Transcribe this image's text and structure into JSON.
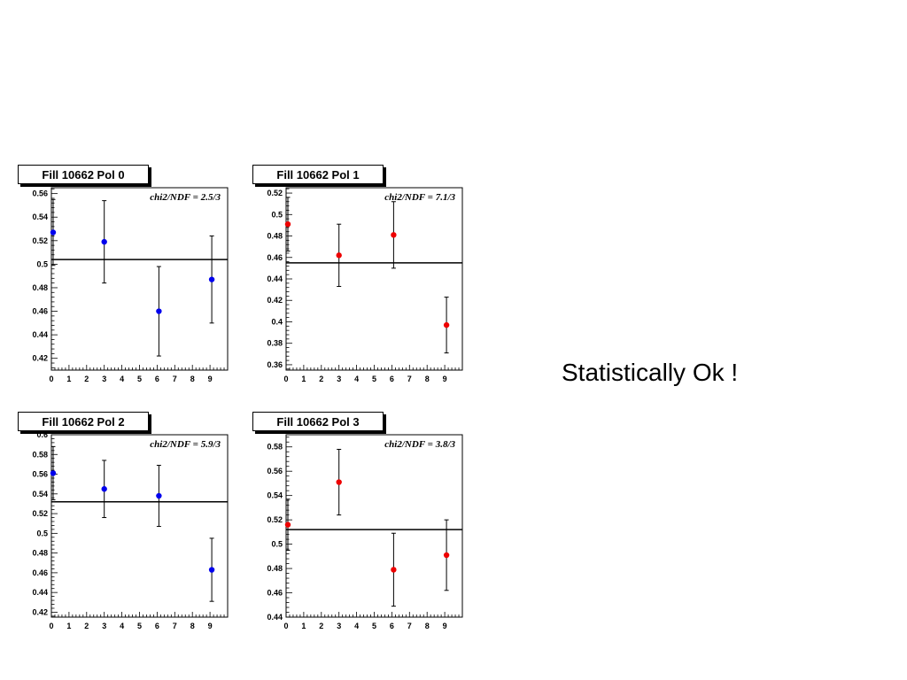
{
  "note": "Statistically Ok !",
  "chart_data": [
    {
      "type": "scatter",
      "title": "Fill 10662  Pol 0",
      "annotation": "chi2/NDF =  2.5/3",
      "xlim": [
        0,
        10
      ],
      "ylim": [
        0.41,
        0.565
      ],
      "x_ticks": [
        0,
        1,
        2,
        3,
        4,
        5,
        6,
        7,
        8,
        9
      ],
      "y_ticks": [
        0.42,
        0.44,
        0.46,
        0.48,
        0.5,
        0.52,
        0.54,
        0.56
      ],
      "y_tick_labels": [
        "0.42",
        "0.44",
        "0.46",
        "0.48",
        "0.5",
        "0.52",
        "0.54",
        "0.56"
      ],
      "points": [
        {
          "x": 0.1,
          "y": 0.527,
          "err": 0.028
        },
        {
          "x": 3.0,
          "y": 0.519,
          "err": 0.035
        },
        {
          "x": 6.1,
          "y": 0.46,
          "err": 0.038
        },
        {
          "x": 9.1,
          "y": 0.487,
          "err": 0.037
        }
      ],
      "fit": 0.504,
      "marker_color": "#0000ee"
    },
    {
      "type": "scatter",
      "title": "Fill 10662  Pol 1",
      "annotation": "chi2/NDF =  7.1/3",
      "xlim": [
        0,
        10
      ],
      "ylim": [
        0.355,
        0.525
      ],
      "x_ticks": [
        0,
        1,
        2,
        3,
        4,
        5,
        6,
        7,
        8,
        9
      ],
      "y_ticks": [
        0.36,
        0.38,
        0.4,
        0.42,
        0.44,
        0.46,
        0.48,
        0.5,
        0.52
      ],
      "y_tick_labels": [
        "0.36",
        "0.38",
        "0.4",
        "0.42",
        "0.44",
        "0.46",
        "0.48",
        "0.5",
        "0.52"
      ],
      "points": [
        {
          "x": 0.1,
          "y": 0.491,
          "err": 0.025
        },
        {
          "x": 3.0,
          "y": 0.462,
          "err": 0.029
        },
        {
          "x": 6.1,
          "y": 0.481,
          "err": 0.031
        },
        {
          "x": 9.1,
          "y": 0.397,
          "err": 0.026
        }
      ],
      "fit": 0.455,
      "marker_color": "#ee0000"
    },
    {
      "type": "scatter",
      "title": "Fill 10662  Pol 2",
      "annotation": "chi2/NDF =  5.9/3",
      "xlim": [
        0,
        10
      ],
      "ylim": [
        0.415,
        0.6
      ],
      "x_ticks": [
        0,
        1,
        2,
        3,
        4,
        5,
        6,
        7,
        8,
        9
      ],
      "y_ticks": [
        0.42,
        0.44,
        0.46,
        0.48,
        0.5,
        0.52,
        0.54,
        0.56,
        0.58,
        0.6
      ],
      "y_tick_labels": [
        "0.42",
        "0.44",
        "0.46",
        "0.48",
        "0.5",
        "0.52",
        "0.54",
        "0.56",
        "0.58",
        "0.6"
      ],
      "points": [
        {
          "x": 0.1,
          "y": 0.561,
          "err": 0.027
        },
        {
          "x": 3.0,
          "y": 0.545,
          "err": 0.029
        },
        {
          "x": 6.1,
          "y": 0.538,
          "err": 0.031
        },
        {
          "x": 9.1,
          "y": 0.463,
          "err": 0.032
        }
      ],
      "fit": 0.532,
      "marker_color": "#0000ee"
    },
    {
      "type": "scatter",
      "title": "Fill 10662  Pol 3",
      "annotation": "chi2/NDF =  3.8/3",
      "xlim": [
        0,
        10
      ],
      "ylim": [
        0.44,
        0.59
      ],
      "x_ticks": [
        0,
        1,
        2,
        3,
        4,
        5,
        6,
        7,
        8,
        9
      ],
      "y_ticks": [
        0.44,
        0.46,
        0.48,
        0.5,
        0.52,
        0.54,
        0.56,
        0.58
      ],
      "y_tick_labels": [
        "0.44",
        "0.46",
        "0.48",
        "0.5",
        "0.52",
        "0.54",
        "0.56",
        "0.58"
      ],
      "points": [
        {
          "x": 0.1,
          "y": 0.516,
          "err": 0.021
        },
        {
          "x": 3.0,
          "y": 0.551,
          "err": 0.027
        },
        {
          "x": 6.1,
          "y": 0.479,
          "err": 0.03
        },
        {
          "x": 9.1,
          "y": 0.491,
          "err": 0.029
        }
      ],
      "fit": 0.512,
      "marker_color": "#ee0000"
    }
  ]
}
